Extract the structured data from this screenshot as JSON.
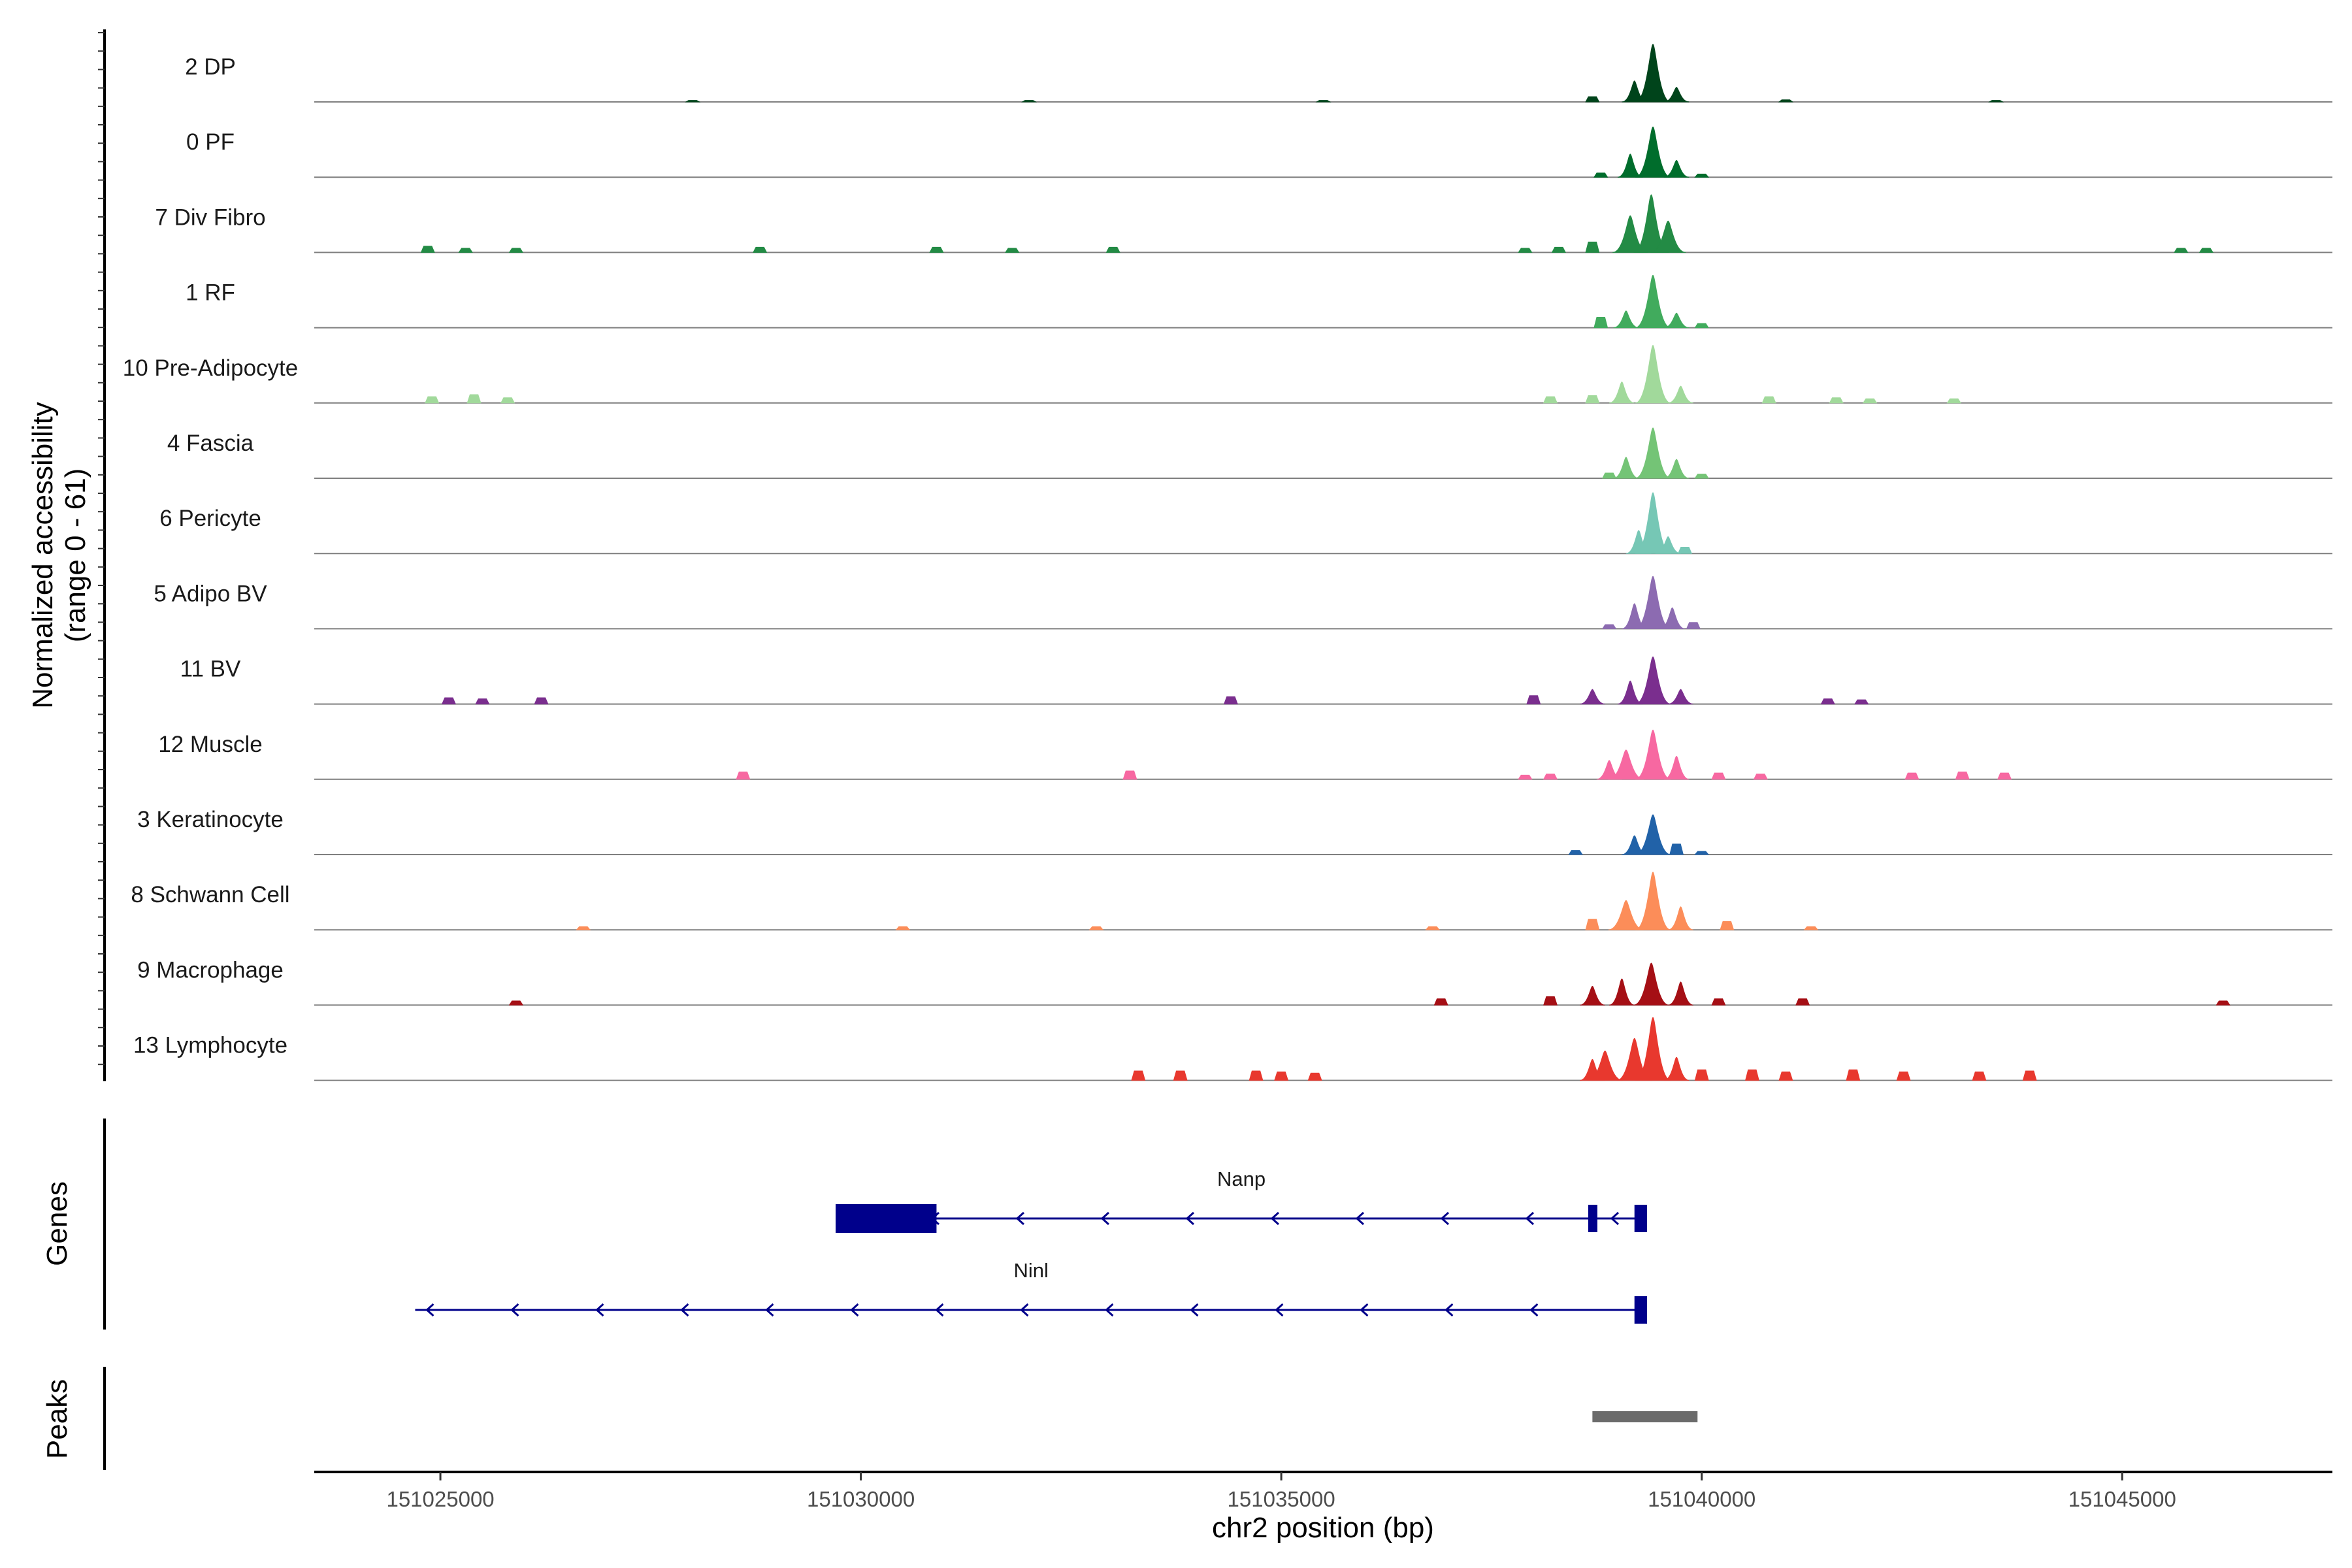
{
  "chart_data": {
    "type": "area",
    "chromosome": "chr2",
    "x_range": [
      151023500,
      151047500
    ],
    "xlabel": "chr2 position (bp)",
    "x_ticks": [
      151025000,
      151030000,
      151035000,
      151040000,
      151045000
    ],
    "x_tick_labels": [
      "151025000",
      "151030000",
      "151035000",
      "151040000",
      "151045000"
    ],
    "ylabel_line1": "Normalized accessibility",
    "ylabel_line2": "(range 0 - 61)",
    "y_range": [
      0,
      61
    ],
    "panel_labels": {
      "genes": "Genes",
      "peaks": "Peaks"
    },
    "series": [
      {
        "name": "2 DP",
        "color": "#00441b",
        "peaks": [
          [
            151039420,
            55
          ],
          [
            151039200,
            20
          ],
          [
            151039700,
            14
          ],
          [
            151038700,
            5
          ],
          [
            151041000,
            2
          ],
          [
            151028000,
            1.5
          ],
          [
            151032000,
            1.5
          ],
          [
            151035500,
            1.5
          ],
          [
            151043500,
            1.5
          ]
        ]
      },
      {
        "name": "0 PF",
        "color": "#006d2c",
        "peaks": [
          [
            151039420,
            48
          ],
          [
            151039150,
            22
          ],
          [
            151039700,
            16
          ],
          [
            151038800,
            4
          ],
          [
            151040000,
            3
          ]
        ]
      },
      {
        "name": "7 Div Fibro",
        "color": "#238b45",
        "peaks": [
          [
            151039400,
            55
          ],
          [
            151039150,
            35
          ],
          [
            151039600,
            30
          ],
          [
            151038700,
            10
          ],
          [
            151038300,
            5
          ],
          [
            151024850,
            6
          ],
          [
            151025300,
            4
          ],
          [
            151025900,
            4
          ],
          [
            151028800,
            5
          ],
          [
            151030900,
            5
          ],
          [
            151031800,
            4
          ],
          [
            151033000,
            5
          ],
          [
            151037900,
            4
          ],
          [
            151046000,
            4
          ],
          [
            151045700,
            4
          ]
        ]
      },
      {
        "name": "1 RF",
        "color": "#41ab5d",
        "peaks": [
          [
            151039420,
            50
          ],
          [
            151039100,
            16
          ],
          [
            151038800,
            10
          ],
          [
            151039700,
            14
          ],
          [
            151040000,
            4
          ]
        ]
      },
      {
        "name": "10 Pre-Adipocyte",
        "color": "#a1d99b",
        "peaks": [
          [
            151039420,
            55
          ],
          [
            151039050,
            20
          ],
          [
            151039750,
            16
          ],
          [
            151038200,
            6
          ],
          [
            151038700,
            7
          ],
          [
            151040800,
            6
          ],
          [
            151041600,
            5
          ],
          [
            151042000,
            4
          ],
          [
            151043000,
            4
          ],
          [
            151024900,
            6
          ],
          [
            151025400,
            8
          ],
          [
            151025800,
            5
          ]
        ]
      },
      {
        "name": "4 Fascia",
        "color": "#74c476",
        "peaks": [
          [
            151039420,
            48
          ],
          [
            151039100,
            20
          ],
          [
            151039700,
            18
          ],
          [
            151038900,
            5
          ],
          [
            151040000,
            4
          ]
        ]
      },
      {
        "name": "6 Pericyte",
        "color": "#76c7b5",
        "peaks": [
          [
            151039420,
            58
          ],
          [
            151039250,
            22
          ],
          [
            151039600,
            16
          ],
          [
            151039800,
            6
          ]
        ]
      },
      {
        "name": "5 Adipo BV",
        "color": "#8c6bb1",
        "peaks": [
          [
            151039420,
            50
          ],
          [
            151039200,
            24
          ],
          [
            151039650,
            20
          ],
          [
            151039900,
            6
          ],
          [
            151038900,
            4
          ]
        ]
      },
      {
        "name": "11 BV",
        "color": "#7a2e8e",
        "peaks": [
          [
            151039420,
            45
          ],
          [
            151039150,
            22
          ],
          [
            151038700,
            14
          ],
          [
            151039750,
            14
          ],
          [
            151038000,
            8
          ],
          [
            151034400,
            7
          ],
          [
            151025100,
            6
          ],
          [
            151025500,
            5
          ],
          [
            151026200,
            6
          ],
          [
            151041500,
            5
          ],
          [
            151041900,
            4
          ]
        ]
      },
      {
        "name": "12 Muscle",
        "color": "#f768a1",
        "peaks": [
          [
            151039420,
            47
          ],
          [
            151039100,
            28
          ],
          [
            151038900,
            18
          ],
          [
            151039700,
            22
          ],
          [
            151040200,
            6
          ],
          [
            151038200,
            5
          ],
          [
            151037900,
            4
          ],
          [
            151028600,
            7
          ],
          [
            151033200,
            8
          ],
          [
            151042500,
            6
          ],
          [
            151043100,
            7
          ],
          [
            151043600,
            6
          ],
          [
            151040700,
            5
          ]
        ]
      },
      {
        "name": "3 Keratinocyte",
        "color": "#2162a8",
        "peaks": [
          [
            151039420,
            38
          ],
          [
            151039200,
            18
          ],
          [
            151039700,
            10
          ],
          [
            151038500,
            4
          ],
          [
            151040000,
            3
          ]
        ]
      },
      {
        "name": "8 Schwann Cell",
        "color": "#fc8d59",
        "peaks": [
          [
            151039420,
            55
          ],
          [
            151039100,
            28
          ],
          [
            151039750,
            22
          ],
          [
            151038700,
            10
          ],
          [
            151040300,
            8
          ],
          [
            151032800,
            3
          ],
          [
            151030500,
            3
          ],
          [
            151026700,
            3
          ],
          [
            151036800,
            3
          ],
          [
            151041300,
            3
          ]
        ]
      },
      {
        "name": "9 Macrophage",
        "color": "#a50f15",
        "peaks": [
          [
            151039400,
            40
          ],
          [
            151039050,
            25
          ],
          [
            151038700,
            18
          ],
          [
            151039750,
            22
          ],
          [
            151038200,
            8
          ],
          [
            151036900,
            6
          ],
          [
            151040200,
            6
          ],
          [
            151041200,
            6
          ],
          [
            151046200,
            4
          ],
          [
            151025900,
            4
          ]
        ]
      },
      {
        "name": "13 Lymphocyte",
        "color": "#e8382e",
        "peaks": [
          [
            151039420,
            60
          ],
          [
            151039200,
            40
          ],
          [
            151038850,
            28
          ],
          [
            151039700,
            22
          ],
          [
            151038700,
            20
          ],
          [
            151040000,
            10
          ],
          [
            151040600,
            10
          ],
          [
            151041000,
            8
          ],
          [
            151041800,
            10
          ],
          [
            151042400,
            8
          ],
          [
            151043300,
            8
          ],
          [
            151043900,
            9
          ],
          [
            151033300,
            9
          ],
          [
            151033800,
            9
          ],
          [
            151034700,
            9
          ],
          [
            151035000,
            8
          ],
          [
            151035400,
            7
          ]
        ]
      }
    ],
    "genes": [
      {
        "name": "Nanp",
        "strand": "-",
        "start": 151029700,
        "end": 151039350,
        "exons": [
          [
            151029700,
            151030900
          ],
          [
            151038650,
            151038750
          ],
          [
            151039200,
            151039350
          ]
        ]
      },
      {
        "name": "Ninl",
        "strand": "-",
        "start": 151024700,
        "end": 151039350,
        "exons": [
          [
            151039200,
            151039350
          ]
        ]
      }
    ],
    "peaks_track": [
      {
        "start": 151038700,
        "end": 151039950,
        "color": "#6b6b6b"
      }
    ]
  }
}
